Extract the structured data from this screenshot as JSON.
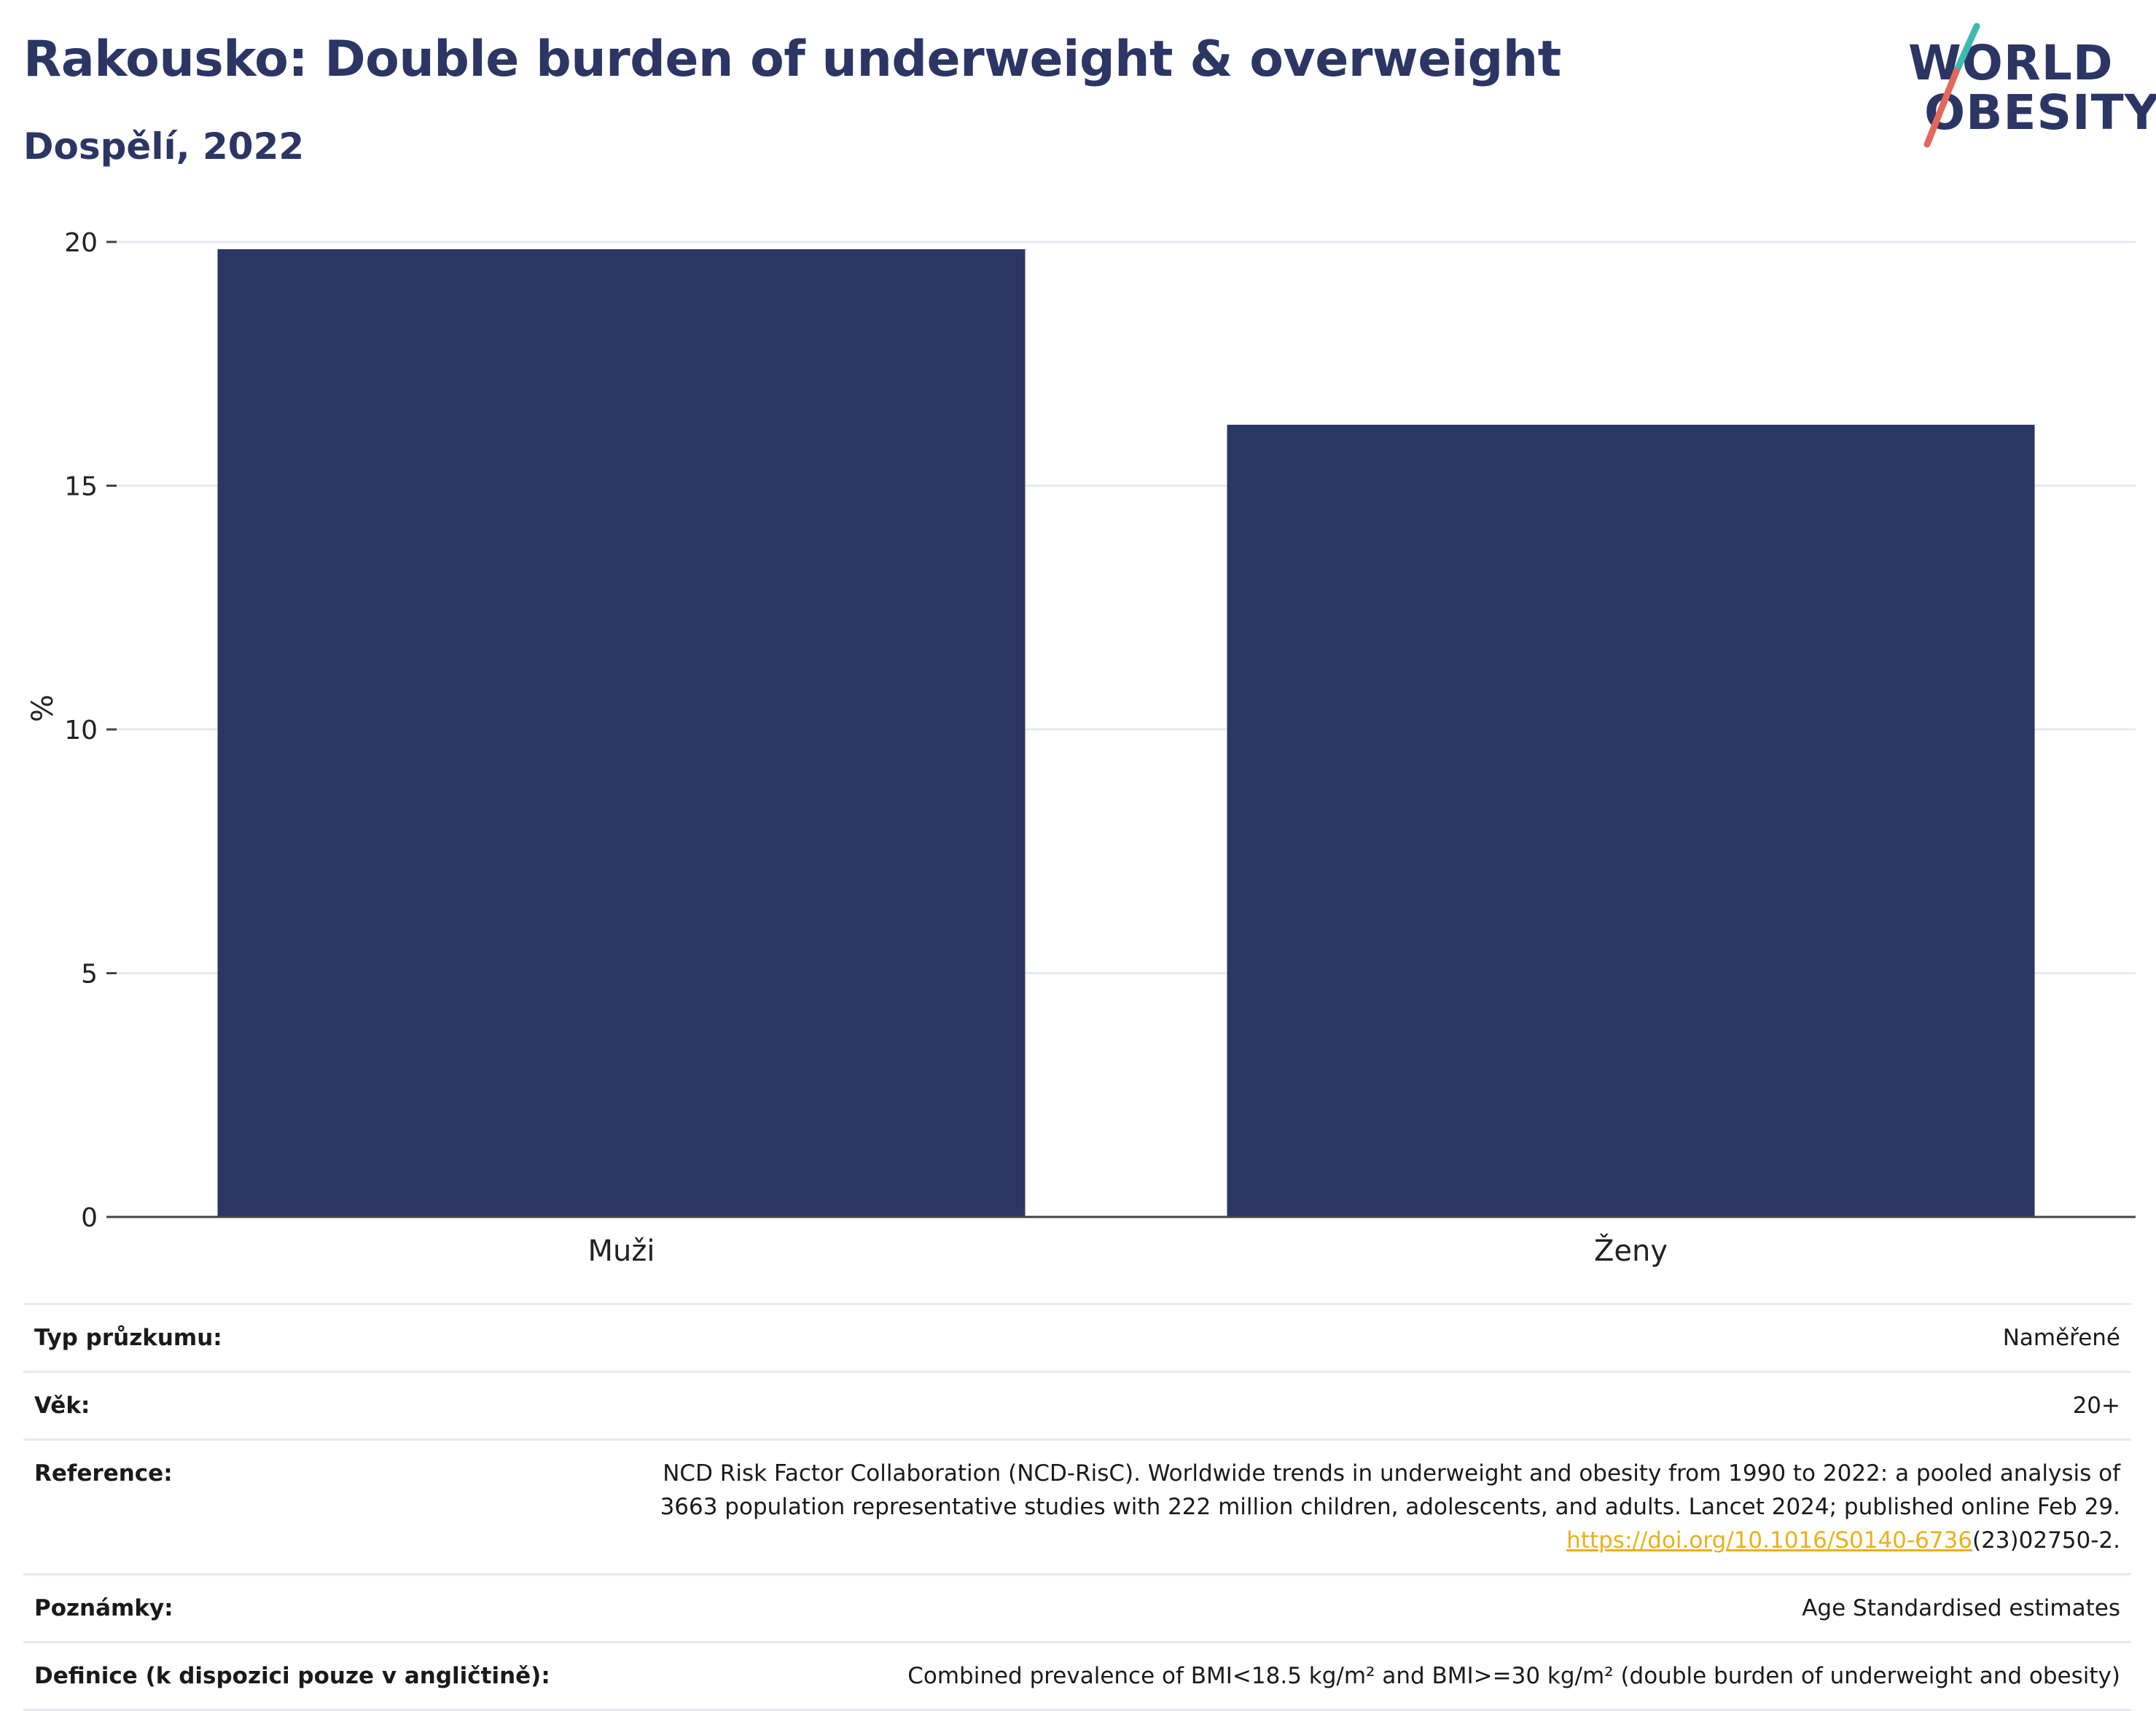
{
  "title": "Rakousko: Double burden of underweight & overweight",
  "subtitle": "Dospělí, 2022",
  "logo": {
    "line1": "WORLD",
    "line2": "OBESITY",
    "accent1": "#3fb8b0",
    "accent2": "#e4685a"
  },
  "colors": {
    "bar": "#2b3664",
    "text": "#2b3664",
    "grid": "#e6e9ef",
    "link": "#e8b21a"
  },
  "chart_data": {
    "type": "bar",
    "categories": [
      "Muži",
      "Ženy"
    ],
    "values": [
      19.85,
      16.25
    ],
    "ylabel": "%",
    "ylim": [
      0,
      20
    ],
    "yticks": [
      "0",
      "5",
      "10",
      "15",
      "20"
    ],
    "grid": true
  },
  "info": {
    "survey_key": "Typ průzkumu:",
    "survey_val": "Naměřené",
    "age_key": "Věk:",
    "age_val": "20+",
    "ref_key": "Reference:",
    "ref_line1": "NCD Risk Factor Collaboration (NCD-RisC). Worldwide trends in underweight and obesity from 1990 to 2022: a pooled analysis of",
    "ref_line2": "3663 population representative studies with 222 million children, adolescents, and adults. Lancet 2024; published online Feb 29.",
    "ref_link": "https://doi.org/10.1016/S0140-6736",
    "ref_tail": "(23)02750-2.",
    "notes_key": "Poznámky:",
    "notes_val": "Age Standardised estimates",
    "def_key": "Definice (k dispozici pouze v angličtině):",
    "def_val": "Combined prevalence of BMI<18.5 kg/m² and BMI>=30 kg/m² (double burden of underweight and obesity)"
  }
}
